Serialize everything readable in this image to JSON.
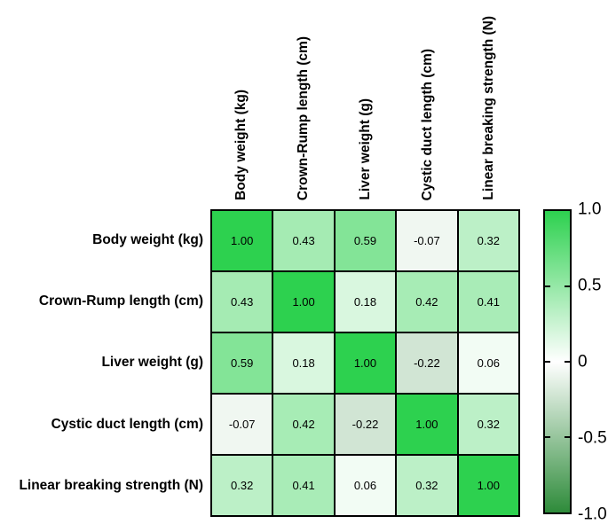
{
  "chart_data": {
    "type": "heatmap",
    "variables": [
      "Body weight (kg)",
      "Crown-Rump length (cm)",
      "Liver weight (g)",
      "Cystic duct length (cm)",
      "Linear breaking strength (N)"
    ],
    "matrix": [
      [
        1.0,
        0.43,
        0.59,
        -0.07,
        0.32
      ],
      [
        0.43,
        1.0,
        0.18,
        0.42,
        0.41
      ],
      [
        0.59,
        0.18,
        1.0,
        -0.22,
        0.06
      ],
      [
        -0.07,
        0.42,
        -0.22,
        1.0,
        0.32
      ],
      [
        0.32,
        0.41,
        0.06,
        0.32,
        1.0
      ]
    ],
    "cell_value_decimals": 2,
    "value_domain": [
      -1,
      1
    ],
    "colormap": {
      "max_color": "#2dd14f",
      "mid_color": "#ffffff",
      "min_color": "#2e8b3a",
      "cell_border_color": "#000000"
    },
    "colorbar": {
      "position": "right",
      "ticks": [
        {
          "label": "1.0",
          "value": 1.0
        },
        {
          "label": "0.5",
          "value": 0.5
        },
        {
          "label": "0",
          "value": 0
        },
        {
          "label": "-0.5",
          "value": -0.5
        },
        {
          "label": "-1.0",
          "value": -1.0
        }
      ]
    },
    "legend_position": "right",
    "grid": "off"
  }
}
